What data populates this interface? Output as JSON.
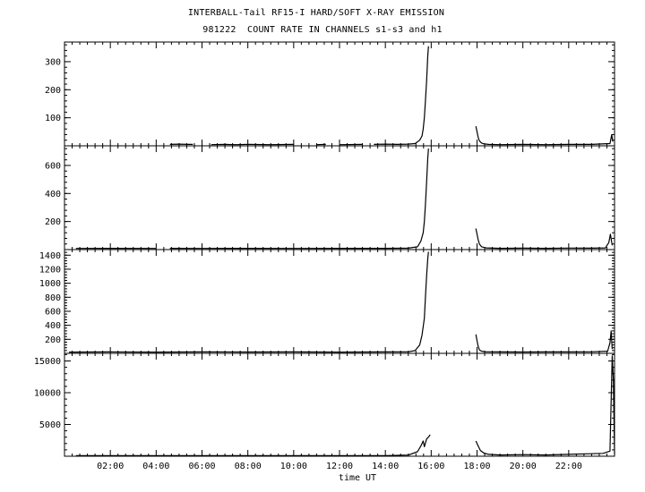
{
  "header": {
    "title_line1": "INTERBALL-Tail RF15-I HARD/SOFT X-RAY EMISSION",
    "title_line2": "981222  COUNT RATE IN CHANNELS s1-s3 and h1"
  },
  "chart_data": {
    "type": "line",
    "xlabel": "time UT",
    "x_unit": "hours UT",
    "xlim": [
      0,
      24
    ],
    "x_tick_labels": [
      "02:00",
      "04:00",
      "06:00",
      "08:00",
      "10:00",
      "12:00",
      "14:00",
      "16:00",
      "18:00",
      "20:00",
      "22:00"
    ],
    "x_tick_values": [
      2,
      4,
      6,
      8,
      10,
      12,
      14,
      16,
      18,
      20,
      22
    ],
    "panels": [
      {
        "ylim": [
          0,
          370
        ],
        "y_ticks": [
          100,
          200,
          300
        ],
        "y_tick_labels": [
          "100",
          "200",
          "300"
        ],
        "segments": [
          {
            "x": [
              4.6,
              5.0,
              5.4,
              5.6
            ],
            "y": [
              5,
              6,
              5,
              5
            ]
          },
          {
            "x": [
              6.4,
              7.0,
              7.5,
              8.0
            ],
            "y": [
              4,
              5,
              4,
              5
            ]
          },
          {
            "x": [
              8.0,
              9.0,
              10.0
            ],
            "y": [
              5,
              4,
              5
            ]
          },
          {
            "x": [
              11.0,
              11.4
            ],
            "y": [
              4,
              5
            ]
          },
          {
            "x": [
              12.0,
              13.0
            ],
            "y": [
              4,
              5
            ]
          },
          {
            "x": [
              13.5,
              14.0,
              14.5,
              15.0,
              15.3,
              15.5,
              15.6,
              15.65,
              15.7,
              15.75,
              15.8,
              15.85,
              15.88
            ],
            "y": [
              5,
              6,
              5,
              6,
              8,
              20,
              35,
              60,
              100,
              160,
              230,
              320,
              355
            ]
          },
          {
            "x": [
              17.95,
              18.0,
              18.05,
              18.1,
              18.2,
              18.3,
              18.5,
              19.0,
              20.0,
              21.0,
              22.0,
              23.0,
              23.8,
              23.88,
              23.92
            ],
            "y": [
              70,
              50,
              30,
              18,
              10,
              7,
              5,
              4,
              5,
              4,
              5,
              5,
              8,
              40,
              15
            ]
          }
        ]
      },
      {
        "ylim": [
          0,
          740
        ],
        "y_ticks": [
          200,
          400,
          600
        ],
        "y_tick_labels": [
          "200",
          "400",
          "600"
        ],
        "segments": [
          {
            "x": [
              0.5,
              2.0,
              4.0
            ],
            "y": [
              8,
              9,
              8
            ]
          },
          {
            "x": [
              4.6,
              6.0,
              8.0,
              10.0,
              12.0,
              14.0,
              15.0,
              15.4,
              15.55,
              15.65,
              15.7,
              15.75,
              15.8,
              15.85,
              15.88
            ],
            "y": [
              9,
              8,
              9,
              8,
              9,
              9,
              10,
              20,
              60,
              120,
              200,
              320,
              480,
              650,
              720
            ]
          },
          {
            "x": [
              17.95,
              18.0,
              18.05,
              18.1,
              18.2,
              18.4,
              19.0,
              20.0,
              21.0,
              22.0,
              23.0,
              23.6,
              23.75,
              23.82,
              23.9
            ],
            "y": [
              150,
              110,
              70,
              40,
              20,
              12,
              9,
              10,
              9,
              11,
              10,
              12,
              50,
              110,
              30
            ]
          }
        ]
      },
      {
        "ylim": [
          0,
          1480
        ],
        "y_ticks": [
          200,
          400,
          600,
          800,
          1000,
          1200,
          1400
        ],
        "y_tick_labels": [
          "200",
          "400",
          "600",
          "800",
          "1000",
          "1200",
          "1400"
        ],
        "segments": [
          {
            "x": [
              0.2,
              2.0,
              4.0,
              6.0,
              8.0,
              10.0,
              12.0,
              14.0,
              15.0,
              15.3,
              15.5,
              15.6,
              15.7,
              15.75,
              15.8,
              15.85,
              15.88
            ],
            "y": [
              18,
              20,
              18,
              20,
              19,
              20,
              18,
              20,
              22,
              40,
              120,
              260,
              500,
              800,
              1100,
              1350,
              1450
            ]
          },
          {
            "x": [
              17.95,
              18.0,
              18.05,
              18.1,
              18.2,
              18.4,
              19.0,
              20.0,
              21.0,
              22.0,
              23.0,
              23.7,
              23.8,
              23.85,
              23.9
            ],
            "y": [
              270,
              180,
              100,
              50,
              30,
              22,
              20,
              19,
              21,
              20,
              22,
              30,
              150,
              320,
              60
            ]
          }
        ]
      },
      {
        "ylim": [
          0,
          16200
        ],
        "y_ticks": [
          5000,
          10000,
          15000
        ],
        "y_tick_labels": [
          "5000",
          "10000",
          "15000"
        ],
        "segments": [
          {
            "x": [
              0.5,
              2.0,
              4.0,
              6.0,
              8.0,
              10.0,
              12.0,
              14.0,
              15.0,
              15.4,
              15.55,
              15.65,
              15.7,
              15.8,
              15.9,
              15.95
            ],
            "y": [
              80,
              90,
              80,
              90,
              85,
              90,
              85,
              100,
              180,
              700,
              1600,
              2400,
              1500,
              2700,
              3100,
              3400
            ]
          },
          {
            "x": [
              17.95,
              18.05,
              18.15,
              18.3,
              18.5,
              19.0,
              20.0,
              21.0,
              22.0,
              23.0,
              23.5,
              23.8,
              23.9,
              23.95,
              24.0
            ],
            "y": [
              2400,
              1600,
              900,
              500,
              300,
              200,
              250,
              200,
              300,
              400,
              450,
              800,
              15800,
              12000,
              300
            ]
          }
        ]
      }
    ]
  }
}
